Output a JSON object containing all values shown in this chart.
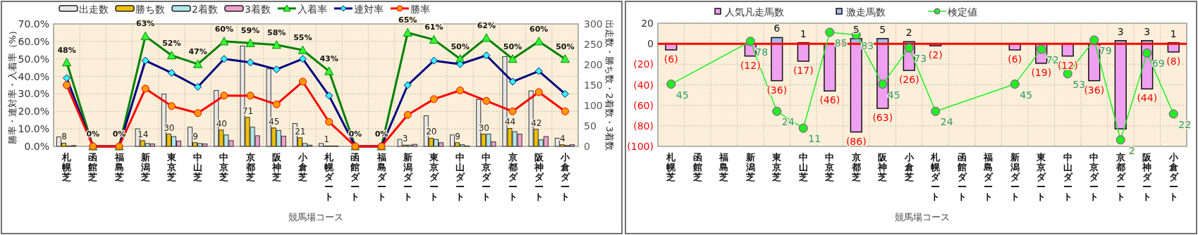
{
  "chart_data": [
    {
      "type": "bar",
      "xlabel": "競馬場コース",
      "ylabel": "勝率・連対率・入着率（%）",
      "y2label": "出走数・勝ち数・2着数・3着数",
      "categories": [
        "札幌芝",
        "函館芝",
        "福島芝",
        "新潟芝",
        "東京芝",
        "中山芝",
        "中京芝",
        "京都芝",
        "阪神芝",
        "小倉芝",
        "札幌ダート",
        "函館ダート",
        "福島ダート",
        "新潟ダート",
        "東京ダート",
        "中山ダート",
        "中京ダート",
        "京都ダート",
        "阪神ダート",
        "小倉ダート"
      ],
      "series": [
        {
          "name": "出走数",
          "axis": "y2",
          "color": "#e8e8e8",
          "values": [
            23,
            0,
            0,
            43,
            128,
            47,
            137,
            246,
            190,
            56,
            7,
            0,
            0,
            17,
            75,
            28,
            115,
            220,
            136,
            20
          ]
        },
        {
          "name": "勝ち数",
          "axis": "y2",
          "color": "#f0c000",
          "values": [
            8,
            0,
            0,
            14,
            30,
            9,
            40,
            71,
            45,
            21,
            1,
            0,
            0,
            3,
            20,
            9,
            30,
            44,
            42,
            4
          ],
          "value_labels": [
            "8",
            null,
            null,
            "14",
            "30",
            "9",
            "40",
            "71",
            "45",
            "21",
            "1",
            null,
            null,
            "3",
            "20",
            "9",
            "30",
            "44",
            "42",
            "4"
          ]
        },
        {
          "name": "2着数",
          "axis": "y2",
          "color": "#b0e8ec",
          "values": [
            1,
            0,
            0,
            7,
            24,
            7,
            28,
            47,
            39,
            7,
            1,
            0,
            0,
            3,
            17,
            4,
            30,
            36,
            16,
            2
          ]
        },
        {
          "name": "3着数",
          "axis": "y2",
          "color": "#f0a0d0",
          "values": [
            2,
            0,
            0,
            6,
            13,
            6,
            14,
            26,
            25,
            3,
            1,
            0,
            0,
            5,
            9,
            1,
            11,
            30,
            24,
            4
          ]
        },
        {
          "name": "入着率",
          "type": "line",
          "color": "#008000",
          "marker": "triangle",
          "values": [
            48,
            0,
            0,
            63,
            52,
            47,
            60,
            59,
            58,
            55,
            43,
            0,
            0,
            65,
            61,
            50,
            62,
            50,
            60,
            50
          ],
          "value_labels": [
            "48%",
            "0%",
            "0%",
            "63%",
            "52%",
            "47%",
            "60%",
            "59%",
            "58%",
            "55%",
            "43%",
            "0%",
            "0%",
            "65%",
            "61%",
            "50%",
            "62%",
            "50%",
            "60%",
            "50%"
          ]
        },
        {
          "name": "連対率",
          "type": "line",
          "color": "#000080",
          "marker": "diamond",
          "values": [
            39,
            0,
            0,
            49,
            42,
            34,
            50,
            48,
            44,
            50,
            29,
            0,
            0,
            35,
            49,
            47,
            52,
            37,
            43,
            30
          ]
        },
        {
          "name": "勝率",
          "type": "line",
          "color": "#ff0000",
          "marker": "circle",
          "values": [
            35,
            0,
            0,
            33,
            23,
            19,
            29,
            29,
            24,
            37,
            14,
            0,
            0,
            18,
            27,
            32,
            26,
            20,
            31,
            20
          ]
        }
      ],
      "ylim": [
        0,
        70
      ],
      "yticks": [
        {
          "value": 0,
          "label": "0.0%"
        },
        {
          "value": 10,
          "label": "10.0%"
        },
        {
          "value": 20,
          "label": "20.0%"
        },
        {
          "value": 30,
          "label": "30.0%"
        },
        {
          "value": 40,
          "label": "40.0%"
        },
        {
          "value": 50,
          "label": "50.0%"
        },
        {
          "value": 60,
          "label": "60.0%"
        },
        {
          "value": 70,
          "label": "70.0%"
        }
      ],
      "y2lim": [
        0,
        300
      ],
      "y2ticks": [
        0,
        50,
        100,
        150,
        200,
        250,
        300
      ],
      "grid": true,
      "legend": "top left"
    },
    {
      "type": "bar",
      "stacked": true,
      "xlabel": "競馬場コース",
      "categories": [
        "札幌芝",
        "函館芝",
        "福島芝",
        "新潟芝",
        "東京芝",
        "中山芝",
        "中京芝",
        "京都芝",
        "阪神芝",
        "小倉芝",
        "札幌ダート",
        "函館ダート",
        "福島ダート",
        "新潟ダート",
        "東京ダート",
        "中山ダート",
        "中京ダート",
        "京都ダート",
        "阪神ダート",
        "小倉ダート"
      ],
      "series": [
        {
          "name": "人気凡走馬数",
          "color": "#f0a0f0",
          "values": [
            -6,
            null,
            null,
            -12,
            -36,
            -17,
            -46,
            -86,
            -63,
            -26,
            -2,
            null,
            null,
            -6,
            -19,
            -12,
            -36,
            -83,
            -44,
            -8
          ],
          "value_labels": [
            "(6)",
            null,
            null,
            "(12)",
            "(36)",
            "(17)",
            "(46)",
            "(86)",
            "(63)",
            "(26)",
            "(2)",
            null,
            null,
            "(6)",
            "(19)",
            "(12)",
            "(36)",
            null,
            "(44)",
            "(8)"
          ]
        },
        {
          "name": "激走馬数",
          "color": "#a8b8f0",
          "values": [
            null,
            null,
            null,
            null,
            6,
            1,
            null,
            5,
            5,
            2,
            null,
            null,
            null,
            null,
            null,
            null,
            null,
            3,
            3,
            1
          ],
          "value_labels": [
            null,
            null,
            null,
            null,
            "6",
            "1",
            null,
            "5",
            "5",
            "2",
            null,
            null,
            null,
            null,
            null,
            null,
            null,
            "3",
            "3",
            "1"
          ]
        },
        {
          "name": "検定値",
          "type": "line",
          "axis": "y2",
          "color": "#22ee22",
          "marker": "circle",
          "values": [
            45,
            null,
            null,
            78,
            24,
            11,
            85,
            83,
            45,
            73,
            24,
            null,
            null,
            45,
            72,
            53,
            79,
            2,
            69,
            22
          ],
          "value_labels": [
            "45",
            null,
            null,
            "78",
            "24",
            "11",
            "85",
            "83",
            "45",
            "73",
            "24",
            null,
            null,
            "45",
            "72",
            "53",
            "79",
            "2",
            "69",
            "22"
          ]
        }
      ],
      "ylim": [
        -100,
        20
      ],
      "yticks": [
        20,
        0,
        {
          "value": -20,
          "label": "(20)"
        },
        {
          "value": -40,
          "label": "(40)"
        },
        {
          "value": -60,
          "label": "(60)"
        },
        {
          "value": -80,
          "label": "(80)"
        },
        {
          "value": -100,
          "label": "(100)"
        }
      ],
      "y2lim": [
        -3,
        92
      ],
      "ref_lines": [
        {
          "axis": "y",
          "value": 0,
          "color": "#ff0000"
        }
      ],
      "grid": true,
      "legend": "top"
    }
  ]
}
